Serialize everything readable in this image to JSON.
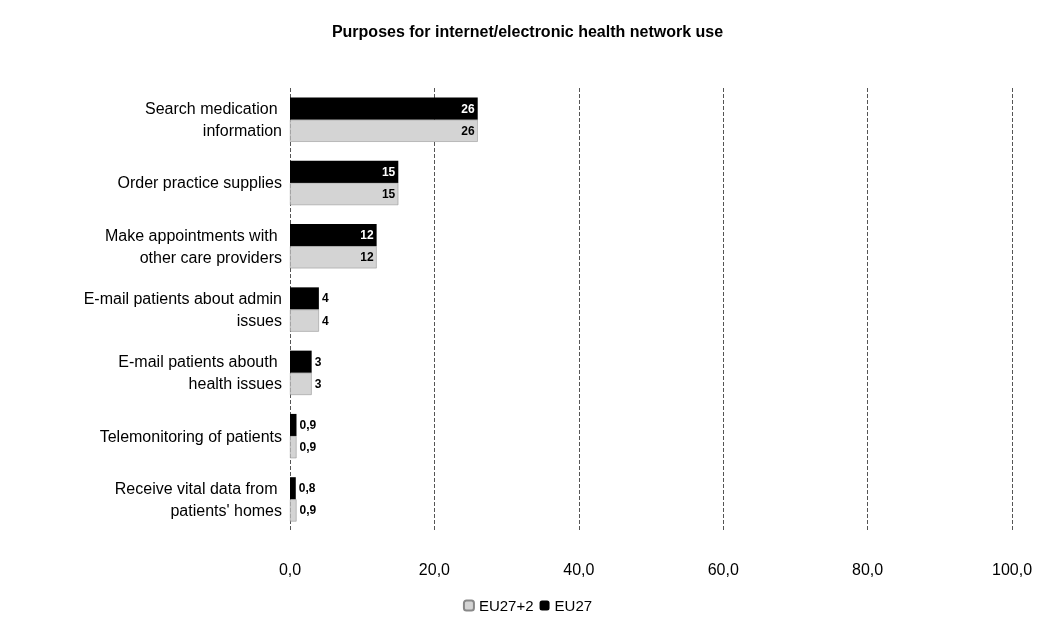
{
  "chart_data": {
    "type": "bar",
    "orientation": "horizontal",
    "title": "Purposes for internet/electronic health network use",
    "categories": [
      "Search medication information",
      "Order practice supplies",
      "Make appointments with other care providers",
      "E-mail patients about admin issues",
      "E-mail patients abouth health issues",
      "Telemonitoring of patients",
      "Receive vital data from patients' homes"
    ],
    "series": [
      {
        "name": "EU27+2",
        "color": "#d4d4d4",
        "values": [
          26,
          15,
          12,
          4,
          3,
          0.9,
          0.9
        ],
        "value_labels": [
          "26",
          "15",
          "12",
          "4",
          "3",
          "0,9",
          "0,9"
        ]
      },
      {
        "name": "EU27",
        "color": "#000000",
        "values": [
          26,
          15,
          12,
          4,
          3,
          0.9,
          0.8
        ],
        "value_labels": [
          "26",
          "15",
          "12",
          "4",
          "3",
          "0,9",
          "0,8"
        ]
      }
    ],
    "xlim": [
      0,
      100
    ],
    "xticks": [
      {
        "value": 0,
        "label": "0,0"
      },
      {
        "value": 20,
        "label": "20,0"
      },
      {
        "value": 40,
        "label": "40,0"
      },
      {
        "value": 60,
        "label": "60,0"
      },
      {
        "value": 80,
        "label": "80,0"
      },
      {
        "value": 100,
        "label": "100,0"
      }
    ],
    "grid": "x",
    "legend": "bottom"
  }
}
